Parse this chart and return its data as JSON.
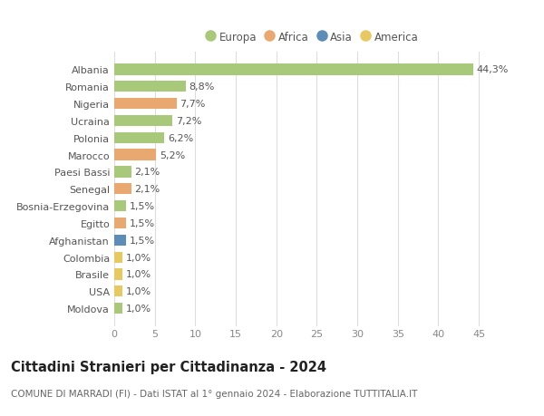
{
  "countries": [
    "Albania",
    "Romania",
    "Nigeria",
    "Ucraina",
    "Polonia",
    "Marocco",
    "Paesi Bassi",
    "Senegal",
    "Bosnia-Erzegovina",
    "Egitto",
    "Afghanistan",
    "Colombia",
    "Brasile",
    "USA",
    "Moldova"
  ],
  "values": [
    44.3,
    8.8,
    7.7,
    7.2,
    6.2,
    5.2,
    2.1,
    2.1,
    1.5,
    1.5,
    1.5,
    1.0,
    1.0,
    1.0,
    1.0
  ],
  "labels": [
    "44,3%",
    "8,8%",
    "7,7%",
    "7,2%",
    "6,2%",
    "5,2%",
    "2,1%",
    "2,1%",
    "1,5%",
    "1,5%",
    "1,5%",
    "1,0%",
    "1,0%",
    "1,0%",
    "1,0%"
  ],
  "colors": [
    "#a8c87a",
    "#a8c87a",
    "#e8a870",
    "#a8c87a",
    "#a8c87a",
    "#e8a870",
    "#a8c87a",
    "#e8a870",
    "#a8c87a",
    "#e8a870",
    "#5b8db8",
    "#e8c860",
    "#e8c860",
    "#e8c860",
    "#a8c87a"
  ],
  "legend_labels": [
    "Europa",
    "Africa",
    "Asia",
    "America"
  ],
  "legend_colors": [
    "#a8c87a",
    "#e8a870",
    "#5b8db8",
    "#e8c860"
  ],
  "title": "Cittadini Stranieri per Cittadinanza - 2024",
  "subtitle": "COMUNE DI MARRADI (FI) - Dati ISTAT al 1° gennaio 2024 - Elaborazione TUTTITALIA.IT",
  "xlim": [
    0,
    47
  ],
  "xticks": [
    0,
    5,
    10,
    15,
    20,
    25,
    30,
    35,
    40,
    45
  ],
  "bg_color": "#ffffff",
  "grid_color": "#dddddd",
  "bar_height": 0.65,
  "label_fontsize": 8,
  "tick_fontsize": 8,
  "ytick_fontsize": 8,
  "title_fontsize": 10.5,
  "subtitle_fontsize": 7.5
}
